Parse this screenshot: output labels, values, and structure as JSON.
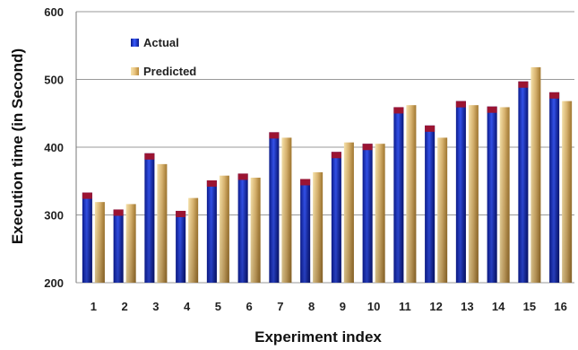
{
  "chart_data": {
    "type": "bar",
    "title": "",
    "xlabel": "Experiment index",
    "ylabel": "Execution time (in Second)",
    "ylim": [
      200,
      600
    ],
    "yticks": [
      200,
      300,
      400,
      500,
      600
    ],
    "grid": true,
    "legend_position": "top-left",
    "categories": [
      "1",
      "2",
      "3",
      "4",
      "5",
      "6",
      "7",
      "8",
      "9",
      "10",
      "11",
      "12",
      "13",
      "14",
      "15",
      "16"
    ],
    "series": [
      {
        "name": "Actual",
        "color": "#1f35c9",
        "cap_color": "#9b1432",
        "values": [
          333,
          308,
          391,
          306,
          351,
          361,
          422,
          353,
          393,
          405,
          459,
          432,
          468,
          460,
          497,
          481
        ]
      },
      {
        "name": "Predicted",
        "color": "#d9b060",
        "values": [
          319,
          316,
          375,
          325,
          358,
          355,
          414,
          363,
          407,
          405,
          462,
          414,
          462,
          459,
          518,
          468
        ]
      }
    ]
  }
}
